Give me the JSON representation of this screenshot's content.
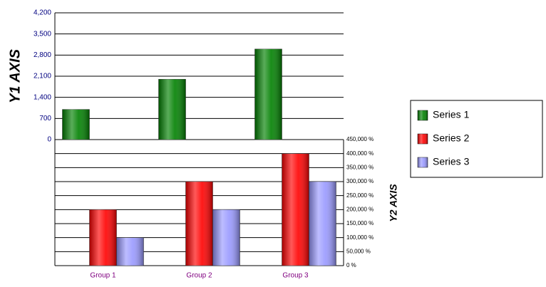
{
  "chart_data": {
    "type": "bar",
    "y_label": "Y1 AXIS",
    "y2_label": "Y2 AXIS",
    "categories": [
      "Group 1",
      "Group 2",
      "Group 3"
    ],
    "series": [
      {
        "name": "Series 1",
        "color": "#008000",
        "values": [
          1000,
          2000,
          3000
        ]
      },
      {
        "name": "Series 2",
        "color": "#ff0000",
        "values": [
          200000,
          300000,
          400000
        ],
        "axis": "y2"
      },
      {
        "name": "Series 3",
        "color": "#9999ff",
        "values": [
          100000,
          200000,
          300000
        ],
        "axis": "y2"
      }
    ],
    "ylim": [
      0,
      4200
    ],
    "yticks": [
      0,
      700,
      {
        "value": 1400,
        "label": "1,400"
      },
      {
        "value": 2100,
        "label": "2,100"
      },
      {
        "value": 2800,
        "label": "2,800"
      },
      {
        "value": 3500,
        "label": "3,500"
      },
      {
        "value": 4200,
        "label": "4,200"
      }
    ],
    "y2lim": [
      0,
      450000
    ],
    "y2ticks": [
      {
        "value": 0,
        "label": "0 %"
      },
      {
        "value": 50000,
        "label": "50,000 %"
      },
      {
        "value": 100000,
        "label": "100,000 %"
      },
      {
        "value": 150000,
        "label": "150,000 %"
      },
      {
        "value": 200000,
        "label": "200,000 %"
      },
      {
        "value": 250000,
        "label": "250,000 %"
      },
      {
        "value": 300000,
        "label": "300,000 %"
      },
      {
        "value": 350000,
        "label": "350,000 %"
      },
      {
        "value": 400000,
        "label": "400,000 %"
      },
      {
        "value": 450000,
        "label": "450,000 %"
      }
    ],
    "grid": true,
    "legend": "right"
  }
}
